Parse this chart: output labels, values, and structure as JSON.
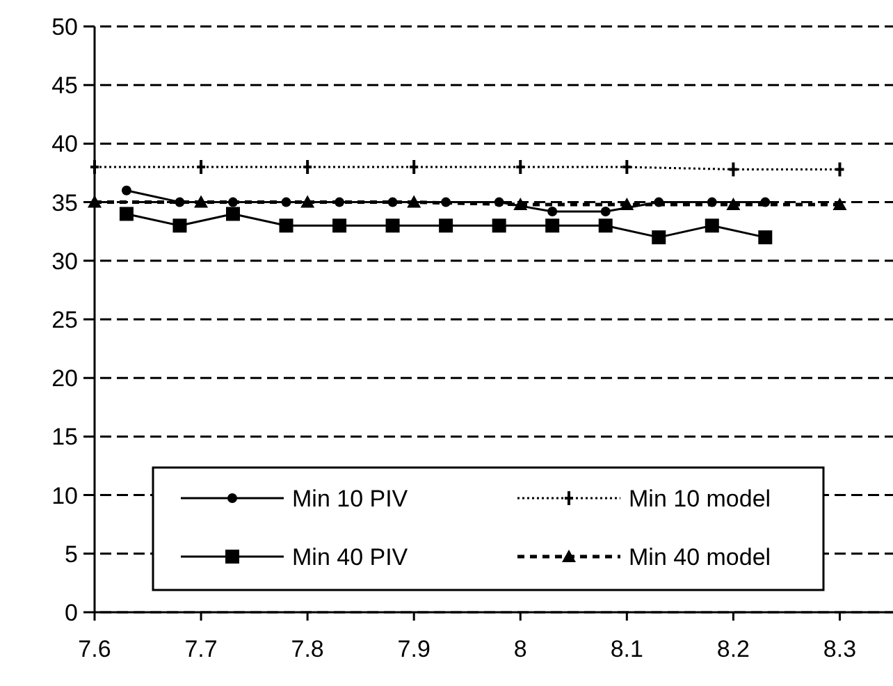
{
  "chart_data": {
    "type": "line",
    "xlim": [
      7.6,
      8.35
    ],
    "xticks": [
      7.6,
      7.7,
      7.8,
      7.9,
      8,
      8.1,
      8.2,
      8.3
    ],
    "ylim": [
      0,
      50
    ],
    "yticks": [
      0,
      5,
      10,
      15,
      20,
      25,
      30,
      35,
      40,
      45,
      50
    ],
    "grid": "y",
    "legend": "bottom",
    "series": [
      {
        "name": "Min 10 PIV",
        "color": "#000000",
        "marker": "circle",
        "line_style": "solid",
        "x": [
          7.63,
          7.68,
          7.73,
          7.78,
          7.83,
          7.88,
          7.93,
          7.98,
          8.03,
          8.08,
          8.13,
          8.18,
          8.23
        ],
        "values": [
          36,
          35,
          35,
          35,
          35,
          35,
          35,
          35,
          34.2,
          34.2,
          35,
          35,
          35
        ]
      },
      {
        "name": "Min 10 model",
        "color": "#000000",
        "marker": "cross",
        "line_style": "dotted",
        "x": [
          7.6,
          7.7,
          7.8,
          7.9,
          8,
          8.1,
          8.2,
          8.3
        ],
        "values": [
          38,
          38,
          38,
          38,
          38,
          38,
          37.8,
          37.8
        ]
      },
      {
        "name": "Min 40 PIV",
        "color": "#000000",
        "marker": "square",
        "line_style": "solid",
        "x": [
          7.63,
          7.68,
          7.73,
          7.78,
          7.83,
          7.88,
          7.93,
          7.98,
          8.03,
          8.08,
          8.13,
          8.18,
          8.23
        ],
        "values": [
          34,
          33,
          34,
          33,
          33,
          33,
          33,
          33,
          33,
          33,
          32,
          33,
          32
        ]
      },
      {
        "name": "Min 40 model",
        "color": "#000000",
        "marker": "triangle",
        "line_style": "dashed",
        "x": [
          7.6,
          7.7,
          7.8,
          7.9,
          8,
          8.1,
          8.2,
          8.3
        ],
        "values": [
          35,
          35,
          35,
          35,
          34.8,
          34.8,
          34.8,
          34.8
        ]
      }
    ]
  }
}
